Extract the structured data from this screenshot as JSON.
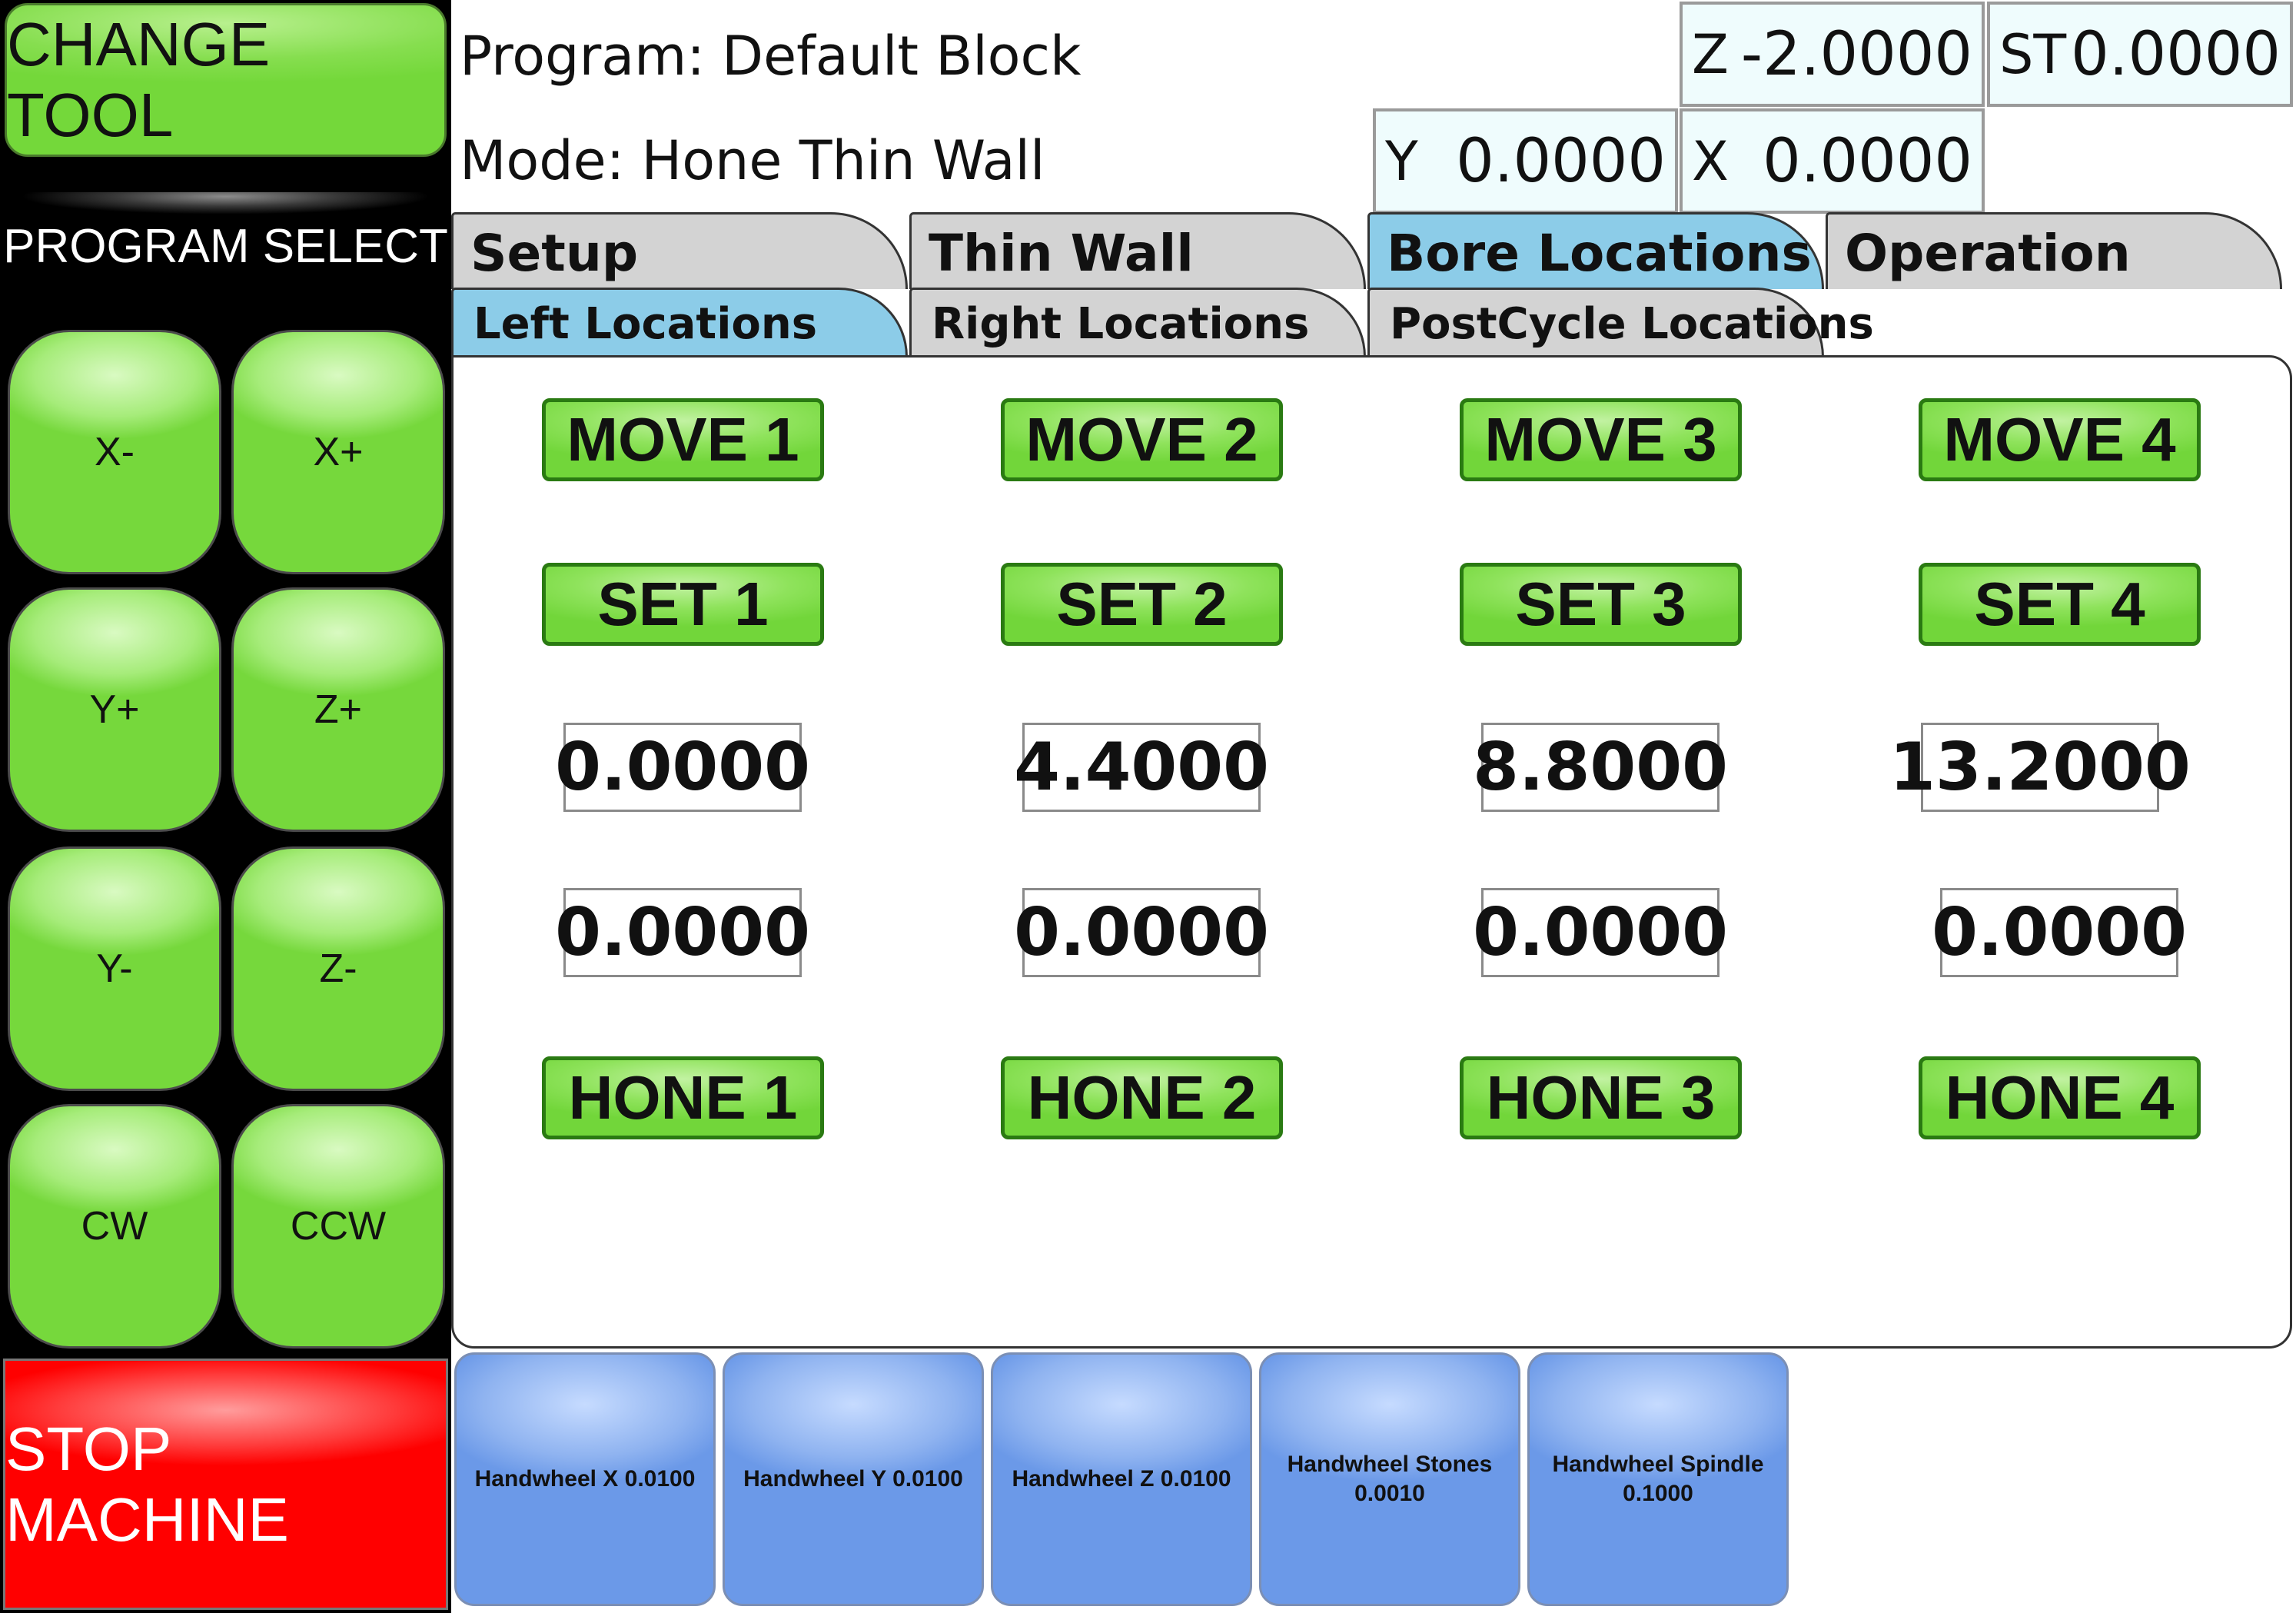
{
  "left_panel": {
    "change_tool": "CHANGE TOOL",
    "program_select": "PROGRAM SELECT",
    "jog": [
      "X-",
      "X+",
      "Y+",
      "Z+",
      "Y-",
      "Z-",
      "CW",
      "CCW"
    ],
    "stop": "STOP MACHINE"
  },
  "header": {
    "program": "Program: Default Block",
    "mode": "Mode: Hone Thin Wall"
  },
  "readouts": {
    "z": {
      "label": "Z",
      "value": "-2.0000"
    },
    "st": {
      "label": "ST",
      "value": "0.0000"
    },
    "y": {
      "label": "Y",
      "value": "0.0000"
    },
    "x": {
      "label": "X",
      "value": "0.0000"
    }
  },
  "tabs": [
    "Setup",
    "Thin Wall",
    "Bore Locations",
    "Operation"
  ],
  "active_tab": "Bore Locations",
  "subtabs": [
    "Left Locations",
    "Right Locations",
    "PostCycle Locations"
  ],
  "active_subtab": "Left Locations",
  "locations": [
    {
      "move": "MOVE 1",
      "set": "SET 1",
      "value1": "0.0000",
      "value2": "0.0000",
      "hone": "HONE 1"
    },
    {
      "move": "MOVE 2",
      "set": "SET 2",
      "value1": "4.4000",
      "value2": "0.0000",
      "hone": "HONE 2"
    },
    {
      "move": "MOVE 3",
      "set": "SET 3",
      "value1": "8.8000",
      "value2": "0.0000",
      "hone": "HONE 3"
    },
    {
      "move": "MOVE 4",
      "set": "SET 4",
      "value1": "13.2000",
      "value2": "0.0000",
      "hone": "HONE 4"
    }
  ],
  "handwheels": [
    "Handwheel X 0.0100",
    "Handwheel Y 0.0100",
    "Handwheel Z 0.0100",
    "Handwheel Stones 0.0010",
    "Handwheel Spindle 0.1000"
  ],
  "colors": {
    "green": "#74d83a",
    "stop_red": "#ff0000",
    "tab_active": "#8ccce8",
    "tab_inactive": "#d3d3d3",
    "handwheel_blue": "#6b99e8",
    "readout_bg": "#effcfd"
  }
}
